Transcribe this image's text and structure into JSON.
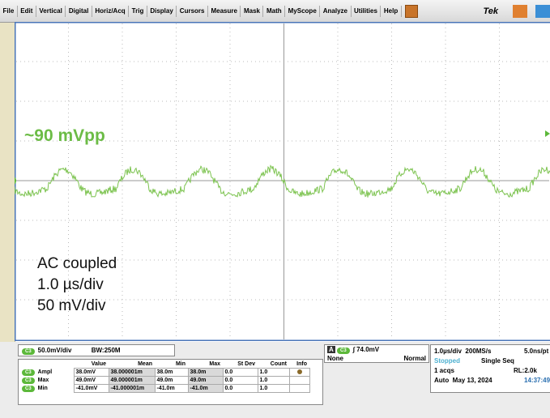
{
  "menu": {
    "items": [
      "File",
      "Edit",
      "Vertical",
      "Digital",
      "Horiz/Acq",
      "Trig",
      "Display",
      "Cursors",
      "Measure",
      "Mask",
      "Math",
      "MyScope",
      "Analyze",
      "Utilities",
      "Help"
    ],
    "brand": "Tek"
  },
  "annotations": {
    "amplitude": "~90 mVpp",
    "notes": [
      "AC coupled",
      "1.0 µs/div",
      "50 mV/div"
    ]
  },
  "channel": {
    "badge": "C3",
    "scale": "50.0mV/div",
    "bandwidth": "BW:250M"
  },
  "measurements": {
    "headers": [
      "Value",
      "Mean",
      "Min",
      "Max",
      "St Dev",
      "Count",
      "Info"
    ],
    "rows": [
      {
        "channel": "C3",
        "name": "Ampl",
        "cells": [
          "38.0mV",
          "38.000001m",
          "38.0m",
          "38.0m",
          "0.0",
          "1.0"
        ]
      },
      {
        "channel": "C3",
        "name": "Max",
        "cells": [
          "49.0mV",
          "49.000001m",
          "49.0m",
          "49.0m",
          "0.0",
          "1.0"
        ]
      },
      {
        "channel": "C3",
        "name": "Min",
        "cells": [
          "-41.0mV",
          "-41.000001m",
          "-41.0m",
          "-41.0m",
          "0.0",
          "1.0"
        ]
      }
    ]
  },
  "trigger": {
    "source": "A",
    "channel": "C3",
    "level": "74.0mV",
    "coupling": "None",
    "mode": "Normal"
  },
  "timebase": {
    "scale": "1.0µs/div",
    "rate": "200MS/s",
    "resolution": "5.0ns/pt",
    "status": "Stopped",
    "mode": "Single Seq",
    "acqs": "1 acqs",
    "record": "RL:2.0k",
    "auto": "Auto",
    "date": "May 13, 2024",
    "time": "14:37:49"
  }
}
